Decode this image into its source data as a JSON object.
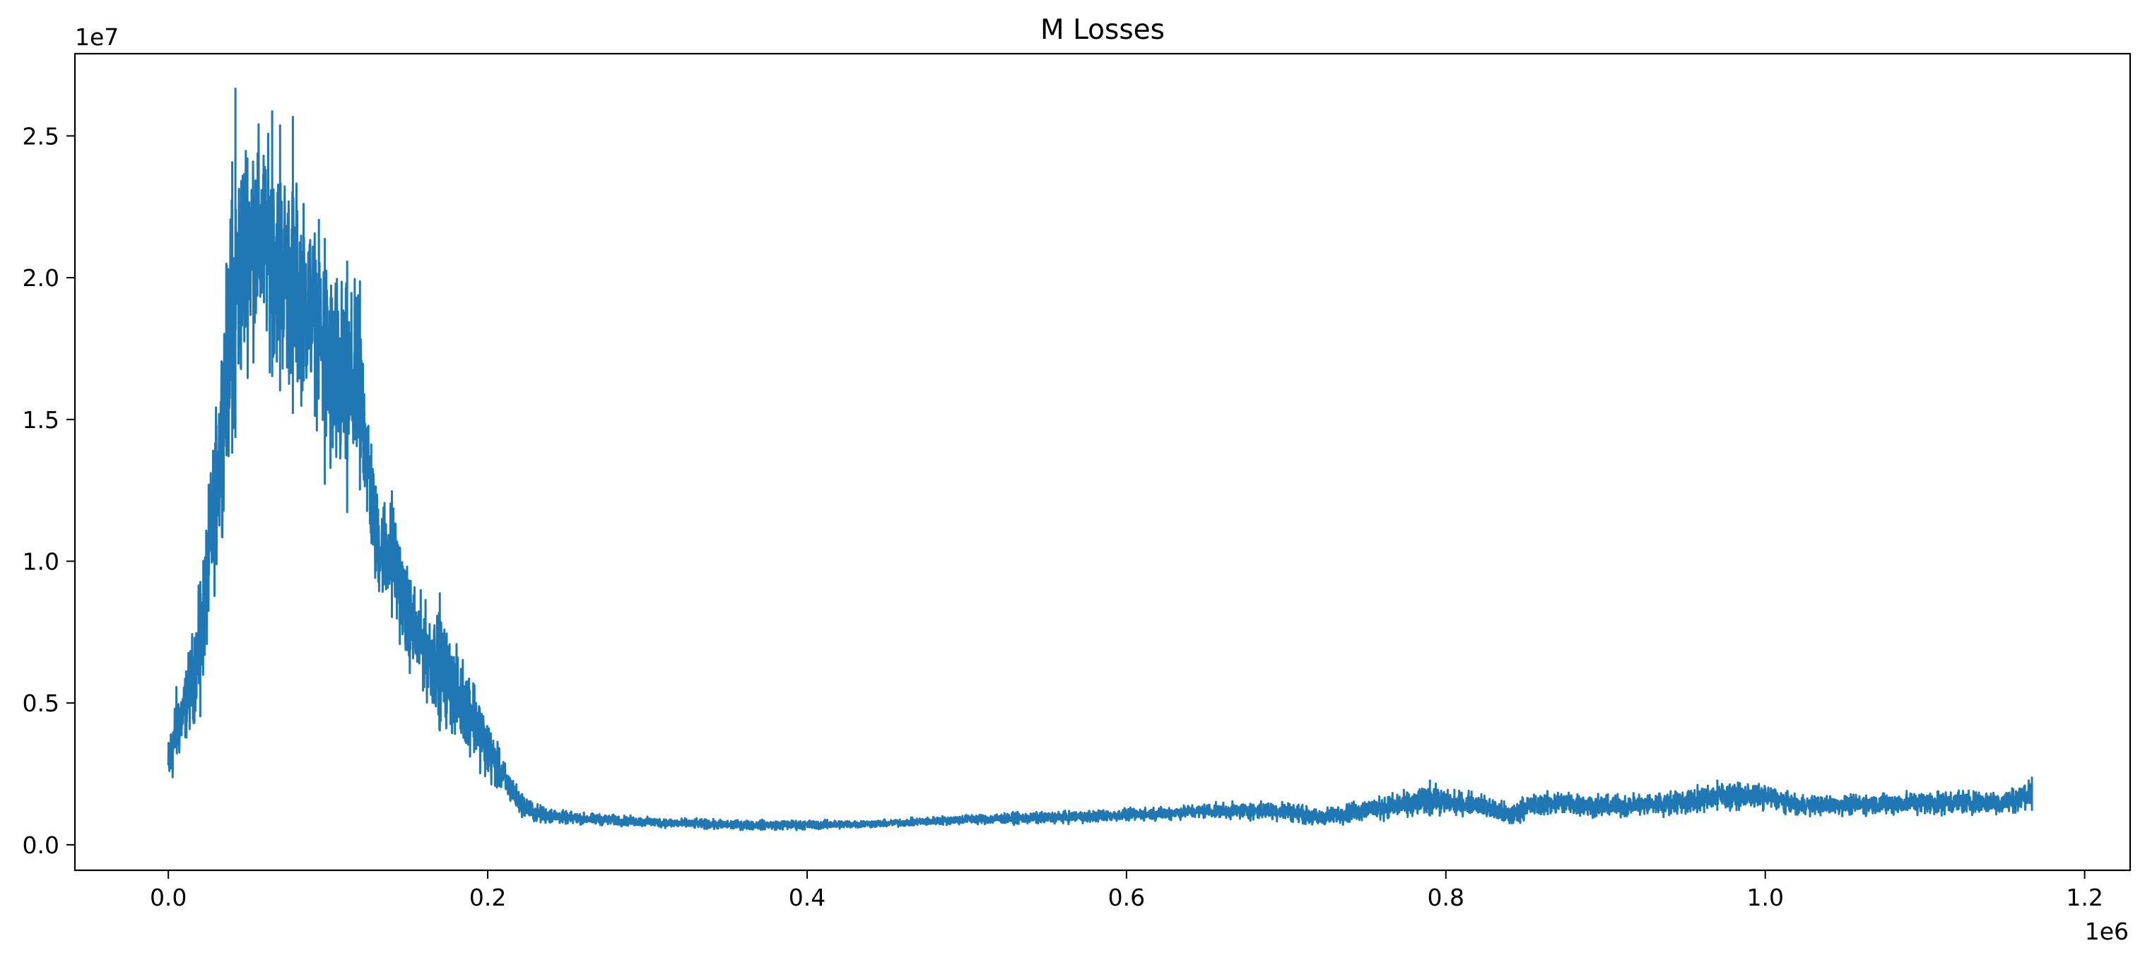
{
  "chart_data": {
    "type": "line",
    "title": "M Losses",
    "xlabel": "",
    "ylabel": "",
    "x_offset_label": "1e6",
    "y_offset_label": "1e7",
    "xlim": [
      -0.0585,
      1.2285
    ],
    "ylim": [
      -0.09,
      2.79
    ],
    "x_ticks": [
      0.0,
      0.2,
      0.4,
      0.6,
      0.8,
      1.0,
      1.2
    ],
    "x_tick_labels": [
      "0.0",
      "0.2",
      "0.4",
      "0.6",
      "0.8",
      "1.0",
      "1.2"
    ],
    "y_ticks": [
      0.0,
      0.5,
      1.0,
      1.5,
      2.0,
      2.5
    ],
    "y_tick_labels": [
      "0.0",
      "0.5",
      "1.0",
      "1.5",
      "2.0",
      "2.5"
    ],
    "grid": false,
    "legend": "none",
    "series_color": "#1f77b4",
    "series": [
      {
        "envelope_x": [
          0.0,
          0.005,
          0.01,
          0.02,
          0.03,
          0.04,
          0.05,
          0.06,
          0.07,
          0.08,
          0.09,
          0.1,
          0.11,
          0.12,
          0.13,
          0.14,
          0.15,
          0.16,
          0.17,
          0.18,
          0.19,
          0.2,
          0.21,
          0.22,
          0.23,
          0.25,
          0.3,
          0.35,
          0.4,
          0.45,
          0.5,
          0.55,
          0.6,
          0.65,
          0.7,
          0.72,
          0.75,
          0.78,
          0.79,
          0.8,
          0.82,
          0.84,
          0.85,
          0.87,
          0.9,
          0.95,
          0.97,
          1.0,
          1.02,
          1.05,
          1.1,
          1.15,
          1.167
        ],
        "envelope_low": [
          0.14,
          0.24,
          0.33,
          0.45,
          0.9,
          1.38,
          1.65,
          1.7,
          1.6,
          1.5,
          1.55,
          1.2,
          1.15,
          1.25,
          0.85,
          0.8,
          0.6,
          0.5,
          0.4,
          0.35,
          0.3,
          0.2,
          0.16,
          0.1,
          0.07,
          0.07,
          0.06,
          0.05,
          0.05,
          0.06,
          0.07,
          0.07,
          0.08,
          0.09,
          0.08,
          0.06,
          0.08,
          0.09,
          0.1,
          0.1,
          0.1,
          0.05,
          0.09,
          0.1,
          0.09,
          0.1,
          0.12,
          0.12,
          0.1,
          0.1,
          0.1,
          0.1,
          0.12
        ],
        "envelope_high": [
          0.4,
          0.58,
          0.62,
          0.95,
          1.6,
          2.4,
          2.65,
          2.55,
          2.48,
          2.4,
          2.25,
          2.15,
          2.05,
          1.99,
          1.3,
          1.25,
          1.0,
          0.88,
          0.85,
          0.72,
          0.65,
          0.46,
          0.31,
          0.2,
          0.15,
          0.12,
          0.1,
          0.09,
          0.09,
          0.09,
          0.11,
          0.12,
          0.13,
          0.15,
          0.16,
          0.13,
          0.17,
          0.2,
          0.23,
          0.2,
          0.19,
          0.15,
          0.18,
          0.2,
          0.18,
          0.2,
          0.23,
          0.22,
          0.18,
          0.18,
          0.2,
          0.2,
          0.24
        ],
        "peaks": [
          {
            "x": 0.02,
            "y": 0.93
          },
          {
            "x": 0.04,
            "y": 2.41
          },
          {
            "x": 0.042,
            "y": 2.67
          },
          {
            "x": 0.065,
            "y": 2.59
          },
          {
            "x": 0.07,
            "y": 2.54
          },
          {
            "x": 0.078,
            "y": 2.57
          },
          {
            "x": 0.098,
            "y": 2.14
          },
          {
            "x": 0.112,
            "y": 2.06
          },
          {
            "x": 0.12,
            "y": 1.99
          },
          {
            "x": 0.14,
            "y": 1.25
          },
          {
            "x": 0.17,
            "y": 0.89
          },
          {
            "x": 0.79,
            "y": 0.23
          },
          {
            "x": 0.97,
            "y": 0.23
          },
          {
            "x": 1.167,
            "y": 0.24
          }
        ]
      }
    ]
  }
}
